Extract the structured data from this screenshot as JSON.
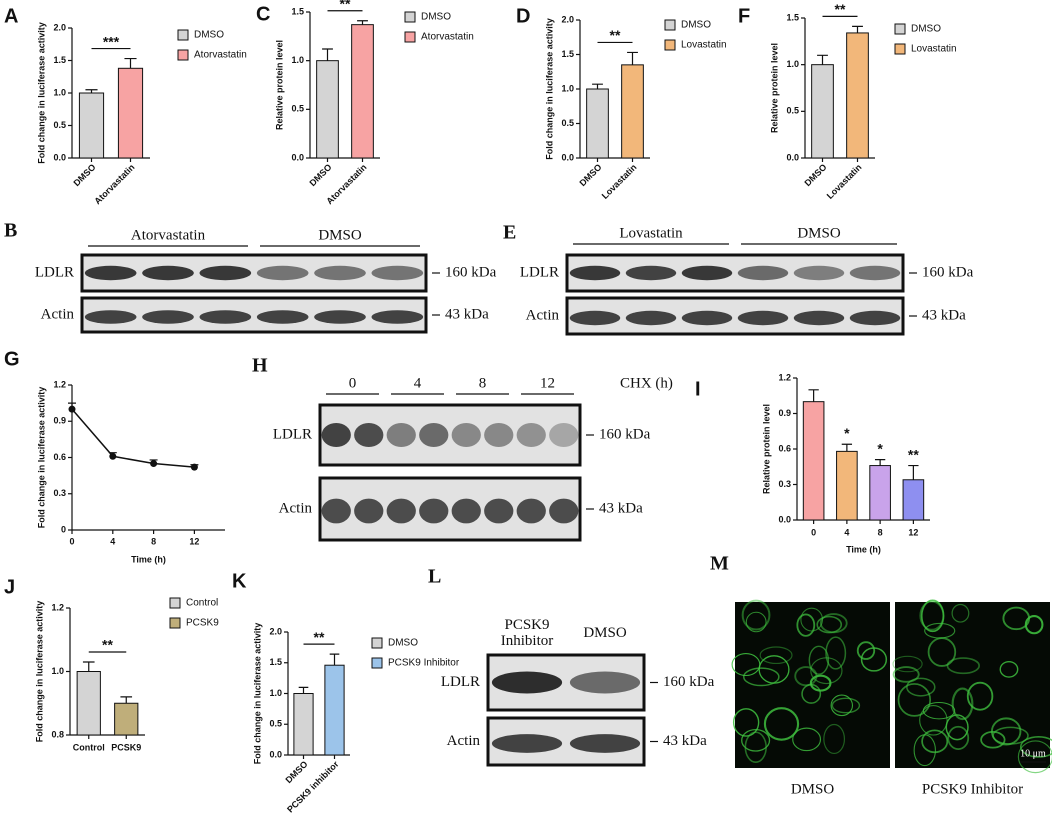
{
  "chart_data": [
    {
      "type": "bar",
      "label": "A",
      "ylabel": "Fold change in luciferase activity",
      "categories": [
        "DMSO",
        "Atorvastatin"
      ],
      "legend": [
        "DMSO",
        "Atorvastatin"
      ],
      "values": [
        1.0,
        1.38
      ],
      "errors": [
        0.05,
        0.15
      ],
      "colors": [
        "#d4d4d4",
        "#f7a3a3"
      ],
      "ylim": [
        0,
        2
      ],
      "yticks": [
        {
          "value": 0,
          "label": "0.0"
        },
        0.5,
        {
          "value": 1,
          "label": "1.0"
        },
        1.5,
        {
          "value": 2,
          "label": "2.0"
        }
      ],
      "significance": "***",
      "rotate_xticks": true
    },
    {
      "type": "bar",
      "label": "C",
      "ylabel": "Relative protein level",
      "categories": [
        "DMSO",
        "Atorvastatin"
      ],
      "legend": [
        "DMSO",
        "Atorvastatin"
      ],
      "values": [
        1.0,
        1.37
      ],
      "errors": [
        0.12,
        0.04
      ],
      "colors": [
        "#d4d4d4",
        "#f7a3a3"
      ],
      "ylim": [
        0,
        1.5
      ],
      "yticks": [
        {
          "value": 0,
          "label": "0.0"
        },
        0.5,
        {
          "value": 1,
          "label": "1.0"
        },
        1.5
      ],
      "significance": "**",
      "rotate_xticks": true
    },
    {
      "type": "bar",
      "label": "D",
      "ylabel": "Fold change in luciferase activity",
      "categories": [
        "DMSO",
        "Lovastatin"
      ],
      "legend": [
        "DMSO",
        "Lovastatin"
      ],
      "values": [
        1.0,
        1.35
      ],
      "errors": [
        0.07,
        0.18
      ],
      "colors": [
        "#d4d4d4",
        "#f2b77a"
      ],
      "ylim": [
        0,
        2
      ],
      "yticks": [
        {
          "value": 0,
          "label": "0.0"
        },
        0.5,
        {
          "value": 1,
          "label": "1.0"
        },
        1.5,
        {
          "value": 2,
          "label": "2.0"
        }
      ],
      "significance": "**",
      "rotate_xticks": true
    },
    {
      "type": "bar",
      "label": "F",
      "ylabel": "Relative protein level",
      "categories": [
        "DMSO",
        "Lovastatin"
      ],
      "legend": [
        "DMSO",
        "Lovastatin"
      ],
      "values": [
        1.0,
        1.34
      ],
      "errors": [
        0.1,
        0.07
      ],
      "colors": [
        "#d4d4d4",
        "#f2b77a"
      ],
      "ylim": [
        0,
        1.5
      ],
      "yticks": [
        {
          "value": 0,
          "label": "0.0"
        },
        0.5,
        {
          "value": 1,
          "label": "1.0"
        },
        1.5
      ],
      "significance": "**",
      "rotate_xticks": true
    },
    {
      "type": "line",
      "label": "G",
      "ylabel": "Fold change in luciferase activity",
      "xlabel": "Time (h)",
      "x": [
        0,
        4,
        8,
        12
      ],
      "values": [
        1.0,
        0.61,
        0.55,
        0.52
      ],
      "errors": [
        0.05,
        0.03,
        0.03,
        0.02
      ],
      "color": "#111111",
      "xlim": [
        0,
        15
      ],
      "xticks": [
        0,
        4,
        8,
        12
      ],
      "ylim": [
        0,
        1.2
      ],
      "yticks": [
        0,
        0.3,
        0.6,
        0.9,
        1.2
      ]
    },
    {
      "type": "bar",
      "label": "I",
      "ylabel": "Relative protein level",
      "xlabel": "Time (h)",
      "categories": [
        "0",
        "4",
        "8",
        "12"
      ],
      "values": [
        1.0,
        0.58,
        0.46,
        0.34
      ],
      "errors": [
        0.1,
        0.06,
        0.05,
        0.12
      ],
      "colors": [
        "#f7a3a3",
        "#f2b77a",
        "#c9a3ea",
        "#8e8ff0"
      ],
      "ylim": [
        0,
        1.2
      ],
      "yticks": [
        {
          "value": 0,
          "label": "0.0"
        },
        0.3,
        0.6,
        0.9,
        1.2
      ],
      "annotations": [
        null,
        "*",
        "*",
        "**"
      ]
    },
    {
      "type": "bar",
      "label": "J",
      "ylabel": "Fold change in luciferase activity",
      "categories": [
        "Control",
        "PCSK9"
      ],
      "legend": [
        "Control",
        "PCSK9"
      ],
      "values": [
        1.0,
        0.9
      ],
      "errors": [
        0.03,
        0.02
      ],
      "colors": [
        "#d4d4d4",
        "#bfae7a"
      ],
      "ylim": [
        0.8,
        1.2
      ],
      "yticks": [
        0.8,
        {
          "value": 1,
          "label": "1.0"
        },
        1.2
      ],
      "significance": "**"
    },
    {
      "type": "bar",
      "label": "K",
      "ylabel": "Fold change in luciferase activity",
      "categories": [
        "DMSO",
        "PCSK9 inhibitor"
      ],
      "legend": [
        "DMSO",
        "PCSK9 Inhibitor"
      ],
      "values": [
        1.0,
        1.46
      ],
      "errors": [
        0.1,
        0.18
      ],
      "colors": [
        "#d4d4d4",
        "#9cc4ea"
      ],
      "ylim": [
        0,
        2
      ],
      "yticks": [
        {
          "value": 0,
          "label": "0.0"
        },
        0.5,
        {
          "value": 1,
          "label": "1.0"
        },
        1.5,
        {
          "value": 2,
          "label": "2.0"
        }
      ],
      "significance": "**",
      "rotate_xticks": true
    }
  ],
  "blots": [
    {
      "label": "B",
      "groups": [
        "Atorvastatin",
        "DMSO"
      ],
      "rows": [
        {
          "name": "LDLR",
          "size": "160 kDa"
        },
        {
          "name": "Actin",
          "size": "43 kDa"
        }
      ]
    },
    {
      "label": "E",
      "groups": [
        "Lovastatin",
        "DMSO"
      ],
      "rows": [
        {
          "name": "LDLR",
          "size": "160 kDa"
        },
        {
          "name": "Actin",
          "size": "43 kDa"
        }
      ]
    },
    {
      "label": "H",
      "groups": [
        "0",
        "4",
        "8",
        "12"
      ],
      "unit": "CHX (h)",
      "rows": [
        {
          "name": "LDLR",
          "size": "160 kDa"
        },
        {
          "name": "Actin",
          "size": "43 kDa"
        }
      ]
    },
    {
      "label": "L",
      "groups": [
        "PCSK9 Inhibitor",
        "DMSO"
      ],
      "rows": [
        {
          "name": "LDLR",
          "size": "160 kDa"
        },
        {
          "name": "Actin",
          "size": "43 kDa"
        }
      ]
    }
  ],
  "images": {
    "label": "M",
    "captions": [
      "DMSO",
      "PCSK9 Inhibitor"
    ],
    "scale_bar": "10 μm"
  }
}
